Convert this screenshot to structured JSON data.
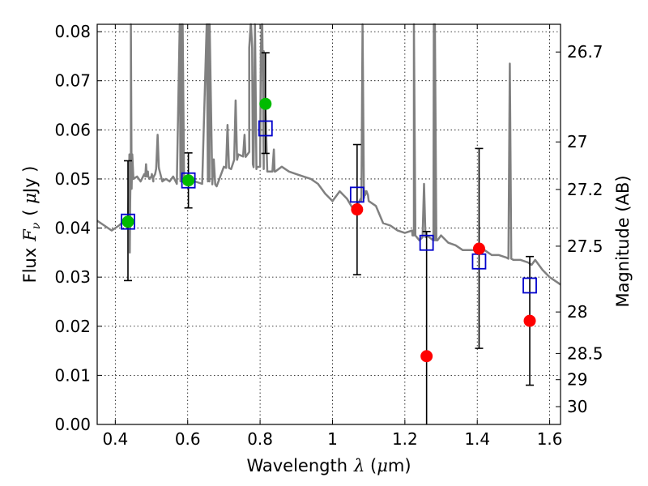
{
  "chart_data": {
    "type": "scatter",
    "xlabel": "Wavelength",
    "xlabel_symbol": "λ",
    "xlabel_unit_open": " (",
    "xlabel_unit_mu": "μ",
    "xlabel_unit_close": "m)",
    "ylabel": "Flux",
    "ylabel_symbol": "F",
    "ylabel_symbol_sub": "ν",
    "ylabel_unit_open": "( ",
    "ylabel_unit_mu": "μ",
    "ylabel_unit_close": "Jy )",
    "y2label": "Magnitude (AB)",
    "xlim": [
      0.35,
      1.63
    ],
    "ylim": [
      0.0,
      0.0815
    ],
    "grid": true,
    "grid_style": "dotted",
    "xticks": [
      {
        "value": 0.4,
        "label": "0.4"
      },
      {
        "value": 0.6,
        "label": "0.6"
      },
      {
        "value": 0.8,
        "label": "0.8"
      },
      {
        "value": 1.0,
        "label": "1"
      },
      {
        "value": 1.2,
        "label": "1.2"
      },
      {
        "value": 1.4,
        "label": "1.4"
      },
      {
        "value": 1.6,
        "label": "1.6"
      }
    ],
    "yticks": [
      {
        "value": 0.0,
        "label": "0.00"
      },
      {
        "value": 0.01,
        "label": "0.01"
      },
      {
        "value": 0.02,
        "label": "0.02"
      },
      {
        "value": 0.03,
        "label": "0.03"
      },
      {
        "value": 0.04,
        "label": "0.04"
      },
      {
        "value": 0.05,
        "label": "0.05"
      },
      {
        "value": 0.06,
        "label": "0.06"
      },
      {
        "value": 0.07,
        "label": "0.07"
      },
      {
        "value": 0.08,
        "label": "0.08"
      }
    ],
    "y2ticks": [
      {
        "value": 26.7,
        "label": "26.7"
      },
      {
        "value": 27.0,
        "label": "27"
      },
      {
        "value": 27.2,
        "label": "27.2"
      },
      {
        "value": 27.5,
        "label": "27.5"
      },
      {
        "value": 28.0,
        "label": "28"
      },
      {
        "value": 28.5,
        "label": "28.5"
      },
      {
        "value": 29.0,
        "label": "29"
      },
      {
        "value": 30.0,
        "label": "30"
      }
    ],
    "series": [
      {
        "kind": "line",
        "color": "#808080",
        "x": [
          0.35,
          0.37,
          0.39,
          0.41,
          0.425,
          0.435,
          0.44,
          0.441,
          0.443,
          0.445,
          0.45,
          0.46,
          0.47,
          0.48,
          0.485,
          0.487,
          0.49,
          0.495,
          0.5,
          0.505,
          0.51,
          0.52,
          0.53,
          0.54,
          0.55,
          0.56,
          0.57,
          0.58,
          0.582,
          0.585,
          0.59,
          0.595,
          0.6,
          0.62,
          0.64,
          0.656,
          0.6565,
          0.66,
          0.68,
          0.7,
          0.72,
          0.74,
          0.76,
          0.77,
          0.775,
          0.78,
          0.79,
          0.8,
          0.805,
          0.81,
          0.82,
          0.84,
          0.86,
          0.88,
          0.9,
          0.92,
          0.94,
          0.96,
          0.98,
          1.0,
          1.02,
          1.04,
          1.06,
          1.08,
          1.09,
          1.1,
          1.12,
          1.14,
          1.16,
          1.18,
          1.2,
          1.22,
          1.225,
          1.24,
          1.26,
          1.28,
          1.283,
          1.29,
          1.3,
          1.32,
          1.34,
          1.36,
          1.38,
          1.4,
          1.42,
          1.44,
          1.46,
          1.48,
          1.5,
          1.52,
          1.54,
          1.55,
          1.56,
          1.58,
          1.6,
          1.62,
          1.63
        ],
        "y": [
          0.0415,
          0.0405,
          0.0395,
          0.0405,
          0.0415,
          0.0408,
          0.035,
          0.045,
          0.055,
          0.048,
          0.05,
          0.0505,
          0.0495,
          0.051,
          0.053,
          0.0505,
          0.0515,
          0.05,
          0.0505,
          0.0495,
          0.051,
          0.0525,
          0.0495,
          0.05,
          0.0495,
          0.0505,
          0.049,
          0.0495,
          0.082,
          0.05,
          0.049,
          0.05,
          0.0495,
          0.0495,
          0.049,
          0.0495,
          0.082,
          0.0495,
          0.0485,
          0.0525,
          0.052,
          0.055,
          0.0545,
          0.0555,
          0.082,
          0.053,
          0.052,
          0.0525,
          0.082,
          0.052,
          0.0515,
          0.0515,
          0.0525,
          0.0515,
          0.051,
          0.0505,
          0.05,
          0.049,
          0.047,
          0.0455,
          0.0475,
          0.046,
          0.0435,
          0.0455,
          0.0475,
          0.0455,
          0.0445,
          0.041,
          0.0405,
          0.0395,
          0.039,
          0.0395,
          0.0385,
          0.0375,
          0.0385,
          0.082,
          0.0375,
          0.0375,
          0.0385,
          0.037,
          0.0365,
          0.0355,
          0.0355,
          0.0355,
          0.0355,
          0.0345,
          0.0345,
          0.034,
          0.0335,
          0.0335,
          0.033,
          0.0325,
          0.0335,
          0.0315,
          0.03,
          0.029,
          0.0285
        ],
        "peaks": [
          {
            "x": 0.443,
            "y": 0.082
          },
          {
            "x": 0.487,
            "y": 0.051
          },
          {
            "x": 0.501,
            "y": 0.051
          },
          {
            "x": 0.517,
            "y": 0.059
          },
          {
            "x": 0.582,
            "y": 0.082
          },
          {
            "x": 0.6565,
            "y": 0.082
          },
          {
            "x": 0.672,
            "y": 0.054
          },
          {
            "x": 0.71,
            "y": 0.061
          },
          {
            "x": 0.7325,
            "y": 0.066
          },
          {
            "x": 0.757,
            "y": 0.059
          },
          {
            "x": 0.774,
            "y": 0.082
          },
          {
            "x": 0.786,
            "y": 0.082
          },
          {
            "x": 0.806,
            "y": 0.082
          },
          {
            "x": 0.838,
            "y": 0.056
          },
          {
            "x": 1.083,
            "y": 0.082
          },
          {
            "x": 1.094,
            "y": 0.0475
          },
          {
            "x": 1.225,
            "y": 0.082
          },
          {
            "x": 1.253,
            "y": 0.049
          },
          {
            "x": 1.283,
            "y": 0.082
          },
          {
            "x": 1.49,
            "y": 0.0735
          }
        ]
      },
      {
        "kind": "points",
        "marker": "open-square",
        "color": "#0000cc",
        "x": [
          0.435,
          0.602,
          0.815,
          1.068,
          1.26,
          1.405,
          1.545
        ],
        "y": [
          0.0413,
          0.0497,
          0.0603,
          0.0468,
          0.037,
          0.0332,
          0.0283
        ]
      },
      {
        "kind": "errorbars",
        "color": "#000000",
        "x": [
          0.435,
          0.602,
          0.815,
          1.068,
          1.26,
          1.405,
          1.545
        ],
        "low": [
          0.0293,
          0.0441,
          0.0552,
          0.0305,
          0.0,
          0.0155,
          0.008
        ],
        "high": [
          0.0537,
          0.0553,
          0.0757,
          0.057,
          0.0393,
          0.0562,
          0.0342
        ]
      },
      {
        "kind": "points",
        "marker": "filled-circle",
        "color": "#00bb00",
        "x": [
          0.435,
          0.602,
          0.815
        ],
        "y": [
          0.0413,
          0.0497,
          0.0653
        ]
      },
      {
        "kind": "points",
        "marker": "filled-circle",
        "color": "#ff0000",
        "x": [
          1.068,
          1.26,
          1.405,
          1.545
        ],
        "y": [
          0.0438,
          0.0139,
          0.0358,
          0.0211
        ]
      }
    ]
  }
}
